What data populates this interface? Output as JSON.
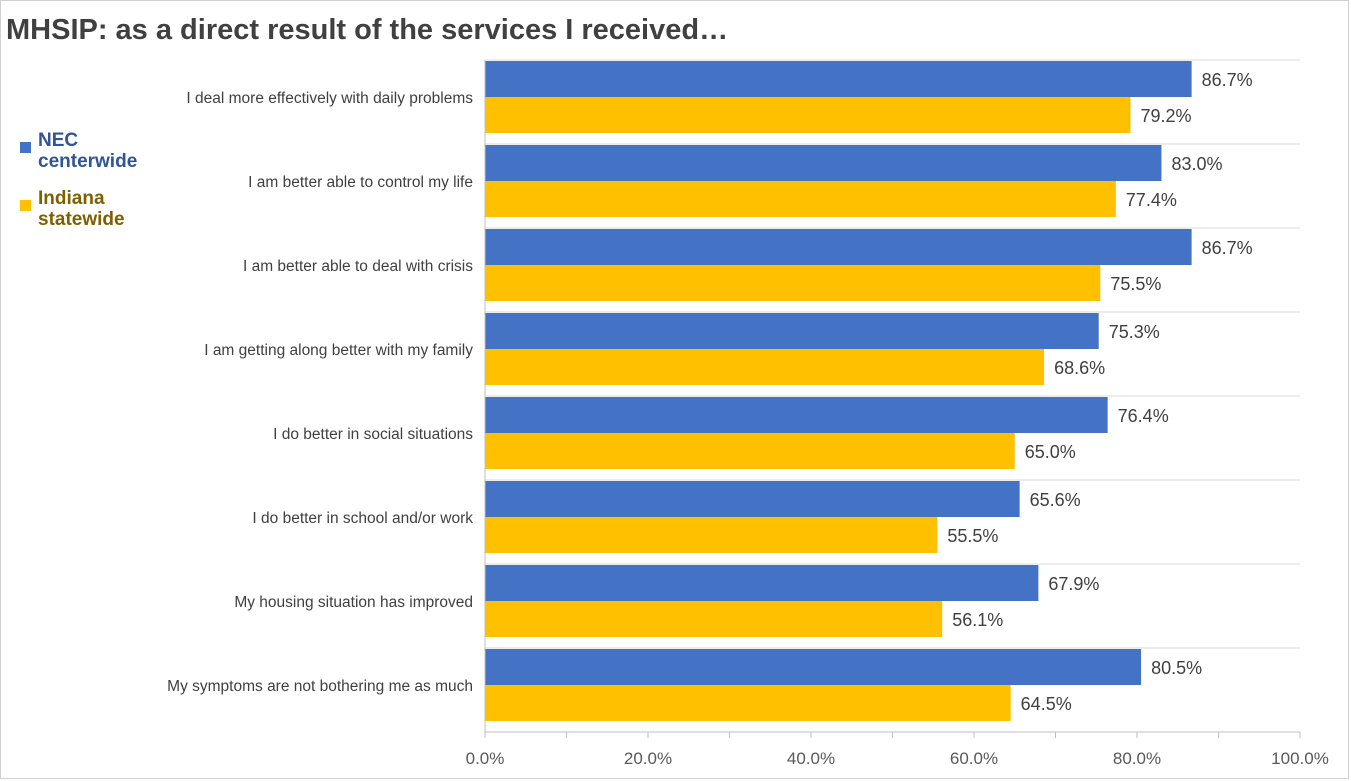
{
  "chart_data": {
    "type": "bar",
    "orientation": "horizontal",
    "title": "MHSIP: as a direct result of the services I received…",
    "categories": [
      "I deal more effectively with daily problems",
      "I am better able to control my life",
      "I am better able to deal with crisis",
      "I am getting along better with my family",
      "I do better in social situations",
      "I do better in school and/or work",
      "My housing situation has improved",
      "My symptoms are not bothering me as much"
    ],
    "series": [
      {
        "name": "NEC centerwide",
        "color": "#4472C4",
        "values": [
          86.7,
          83.0,
          86.7,
          75.3,
          76.4,
          65.6,
          67.9,
          80.5
        ],
        "labels": [
          "86.7%",
          "83.0%",
          "86.7%",
          "75.3%",
          "76.4%",
          "65.6%",
          "67.9%",
          "80.5%"
        ]
      },
      {
        "name": "Indiana statewide",
        "color": "#FFC000",
        "values": [
          79.2,
          77.4,
          75.5,
          68.6,
          65.0,
          55.5,
          56.1,
          64.5
        ],
        "labels": [
          "79.2%",
          "77.4%",
          "75.5%",
          "68.6%",
          "65.0%",
          "55.5%",
          "56.1%",
          "64.5%"
        ]
      }
    ],
    "xlim": [
      0,
      100
    ],
    "xticks": [
      "0.0%",
      "20.0%",
      "40.0%",
      "60.0%",
      "80.0%",
      "100.0%"
    ],
    "grid": true,
    "legend": {
      "placement": "left",
      "items": [
        {
          "line1": "NEC",
          "line2": "centerwide",
          "text_color": "#2F5597"
        },
        {
          "line1": "Indiana",
          "line2": "statewide",
          "text_color": "#7F6000"
        }
      ]
    }
  }
}
